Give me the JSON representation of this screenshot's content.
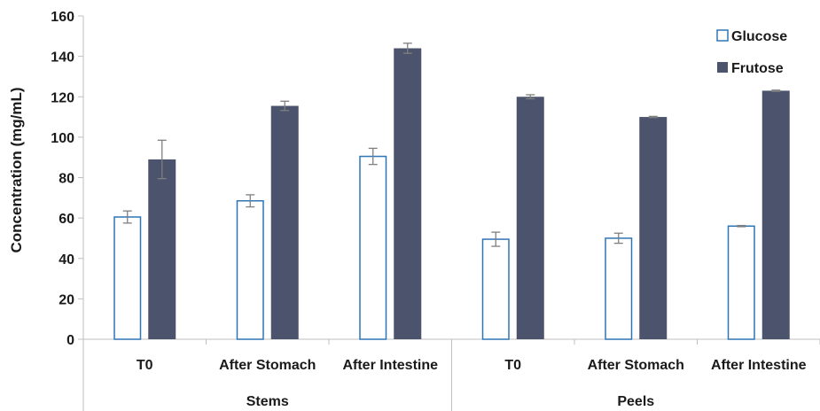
{
  "chart_data": {
    "type": "bar",
    "title": "",
    "ylabel": "Concentration (mg/mL)",
    "xlabel": "",
    "ylim": [
      0,
      160
    ],
    "yticks": [
      0,
      20,
      40,
      60,
      80,
      100,
      120,
      140,
      160
    ],
    "groups": [
      {
        "label": "Stems",
        "categories": [
          "T0",
          "After Stomach",
          "After Intestine"
        ]
      },
      {
        "label": "Peels",
        "categories": [
          "T0",
          "After Stomach",
          "After Intestine"
        ]
      }
    ],
    "series": [
      {
        "name": "Glucose",
        "style": "outline",
        "color": "#2e75b6",
        "values": [
          60.5,
          68.5,
          90.5,
          49.5,
          50,
          56
        ],
        "errors": [
          3,
          3,
          4,
          3.5,
          2.5,
          0.3
        ]
      },
      {
        "name": "Frutose",
        "style": "filled",
        "color": "#4b546c",
        "values": [
          89,
          115.5,
          144,
          120,
          110,
          123
        ],
        "errors": [
          9.5,
          2.3,
          2.5,
          1,
          0.3,
          0.3
        ]
      }
    ],
    "legend_position": "top-right",
    "grid": false
  }
}
